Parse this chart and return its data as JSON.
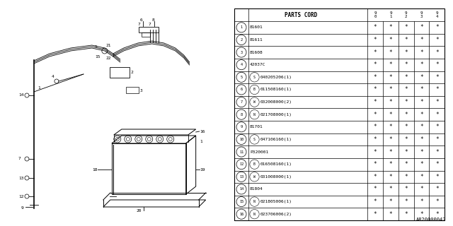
{
  "bg_color": "#ffffff",
  "table_header": "PARTS CORD",
  "year_cols": [
    "9\n0",
    "9\n1",
    "9\n2",
    "9\n3",
    "9\n4"
  ],
  "rows": [
    {
      "num": "1",
      "prefix": "",
      "prefix_circle": "",
      "code": "81601"
    },
    {
      "num": "2",
      "prefix": "",
      "prefix_circle": "",
      "code": "81611"
    },
    {
      "num": "3",
      "prefix": "",
      "prefix_circle": "",
      "code": "81608"
    },
    {
      "num": "4",
      "prefix": "",
      "prefix_circle": "",
      "code": "42037C"
    },
    {
      "num": "5",
      "prefix": "S",
      "prefix_circle": "S",
      "code": "040205206(1)"
    },
    {
      "num": "6",
      "prefix": "B",
      "prefix_circle": "B",
      "code": "011508160(1)"
    },
    {
      "num": "7",
      "prefix": "W",
      "prefix_circle": "W",
      "code": "032008000(2)"
    },
    {
      "num": "8",
      "prefix": "N",
      "prefix_circle": "N",
      "code": "021708000(1)"
    },
    {
      "num": "9",
      "prefix": "",
      "prefix_circle": "",
      "code": "81701"
    },
    {
      "num": "10",
      "prefix": "S",
      "prefix_circle": "S",
      "code": "047106160(1)"
    },
    {
      "num": "11",
      "prefix": "",
      "prefix_circle": "",
      "code": "P320001"
    },
    {
      "num": "12",
      "prefix": "B",
      "prefix_circle": "B",
      "code": "016508160(1)"
    },
    {
      "num": "13",
      "prefix": "W",
      "prefix_circle": "W",
      "code": "031008000(1)"
    },
    {
      "num": "14",
      "prefix": "",
      "prefix_circle": "",
      "code": "81804"
    },
    {
      "num": "15",
      "prefix": "N",
      "prefix_circle": "N",
      "code": "021805006(1)"
    },
    {
      "num": "16",
      "prefix": "N",
      "prefix_circle": "N",
      "code": "023706006(2)"
    }
  ],
  "star": "*",
  "diagram_label": "A820000042",
  "line_color": "#000000",
  "text_color": "#000000"
}
